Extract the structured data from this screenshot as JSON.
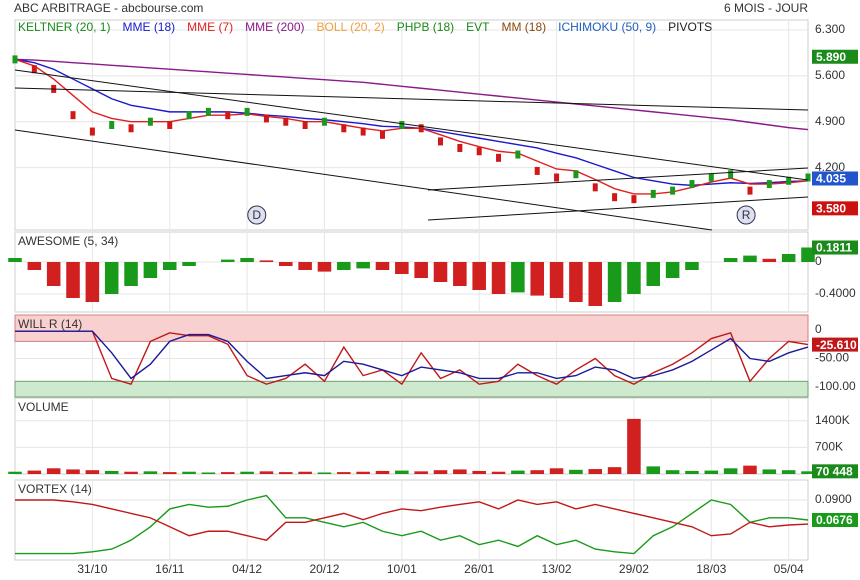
{
  "header": {
    "title": "ABC ARBITRAGE - abcbourse.com",
    "period": "6 MOIS - JOUR"
  },
  "chart_data": [
    {
      "type": "candles",
      "ylim": [
        3.25,
        6.45
      ],
      "yticks": [
        {
          "value": 6.3,
          "label": "6.300"
        },
        {
          "value": 5.6,
          "label": "5.600"
        },
        {
          "value": 4.9,
          "label": "4.900"
        },
        {
          "value": 4.2,
          "label": "4.200"
        }
      ],
      "up_color": "#1a9a1a",
      "down_color": "#d01818",
      "values": [
        5.85,
        5.7,
        5.4,
        5.0,
        4.75,
        4.85,
        4.8,
        4.9,
        4.85,
        5.0,
        5.05,
        5.0,
        5.05,
        4.95,
        4.9,
        4.85,
        4.9,
        4.8,
        4.75,
        4.7,
        4.85,
        4.8,
        4.6,
        4.5,
        4.45,
        4.35,
        4.4,
        4.15,
        4.05,
        4.1,
        3.9,
        3.75,
        3.72,
        3.8,
        3.85,
        3.95,
        4.05,
        4.1,
        3.85,
        3.95,
        4.0,
        4.05
      ],
      "series": [
        {
          "name": "KELTNER (20, 1)",
          "color": "#1a8a1a"
        },
        {
          "name": "MME (18)",
          "color": "#1a1acc",
          "values": [
            5.85,
            5.8,
            5.7,
            5.55,
            5.4,
            5.25,
            5.15,
            5.1,
            5.05,
            5.05,
            5.05,
            5.05,
            5.03,
            5.0,
            4.98,
            4.95,
            4.93,
            4.9,
            4.87,
            4.83,
            4.82,
            4.8,
            4.75,
            4.7,
            4.65,
            4.6,
            4.55,
            4.5,
            4.42,
            4.35,
            4.25,
            4.15,
            4.05,
            4.0,
            3.95,
            3.93,
            3.95,
            3.97,
            3.96,
            3.97,
            3.99,
            4.0
          ]
        },
        {
          "name": "MME (7)",
          "color": "#e02020",
          "values": [
            5.85,
            5.75,
            5.55,
            5.3,
            5.05,
            4.95,
            4.9,
            4.9,
            4.9,
            4.95,
            5.0,
            5.0,
            5.02,
            4.98,
            4.95,
            4.9,
            4.9,
            4.85,
            4.8,
            4.76,
            4.8,
            4.8,
            4.7,
            4.6,
            4.52,
            4.45,
            4.42,
            4.3,
            4.18,
            4.15,
            4.02,
            3.88,
            3.8,
            3.8,
            3.83,
            3.9,
            3.98,
            4.04,
            3.95,
            3.95,
            3.97,
            4.0
          ]
        },
        {
          "name": "MME (200)",
          "color": "#8a1a8a",
          "values": [
            5.85,
            5.84,
            5.82,
            5.8,
            5.78,
            5.76,
            5.74,
            5.72,
            5.7,
            5.68,
            5.66,
            5.64,
            5.62,
            5.6,
            5.58,
            5.56,
            5.54,
            5.52,
            5.5,
            5.47,
            5.44,
            5.41,
            5.38,
            5.35,
            5.32,
            5.29,
            5.26,
            5.23,
            5.2,
            5.17,
            5.14,
            5.11,
            5.08,
            5.05,
            5.02,
            4.99,
            4.96,
            4.93,
            4.89,
            4.85,
            4.81,
            4.78
          ]
        },
        {
          "name": "BOLL (20, 2)",
          "color": "#f0a040"
        },
        {
          "name": "PHPB (18)",
          "color": "#1a8a1a"
        },
        {
          "name": "EVT",
          "color": "#1a8a1a"
        },
        {
          "name": "MM (18)",
          "color": "#8a4a10"
        },
        {
          "name": "ICHIMOKU (50, 9)",
          "color": "#2060c0"
        },
        {
          "name": "PIVOTS",
          "color": "#222222"
        }
      ],
      "badges": [
        {
          "value": 5.89,
          "label": "5.890",
          "color": "#1a8a1a"
        },
        {
          "value": 4.035,
          "label": "4.035",
          "color": "#2255cc"
        },
        {
          "value": 3.58,
          "label": "3.580",
          "color": "#cc1111"
        }
      ],
      "markers": [
        {
          "x": 12.5,
          "label": "D"
        },
        {
          "x": 37.8,
          "label": "R"
        }
      ]
    },
    {
      "type": "bar",
      "title": "AWESOME (5, 34)",
      "ylim": [
        -0.625,
        0.375
      ],
      "yticks": [
        0,
        {
          "value": -0.4,
          "label": "-0.4000"
        }
      ],
      "up_color": "#1a9a1a",
      "down_color": "#d02020",
      "badge_color": "#1a8a1a",
      "values": [
        0.05,
        -0.1,
        -0.3,
        -0.45,
        -0.5,
        -0.4,
        -0.3,
        -0.2,
        -0.1,
        -0.05,
        0,
        0.03,
        0.05,
        0.02,
        -0.05,
        -0.1,
        -0.12,
        -0.1,
        -0.08,
        -0.1,
        -0.15,
        -0.2,
        -0.25,
        -0.3,
        -0.35,
        -0.4,
        -0.38,
        -0.42,
        -0.45,
        -0.5,
        -0.55,
        -0.5,
        -0.4,
        -0.3,
        -0.2,
        -0.1,
        0,
        0.05,
        0.08,
        0.04,
        0.1,
        0.1811
      ]
    },
    {
      "type": "line",
      "title": "WILL R (14)",
      "ylim": [
        -117.5,
        26.3
      ],
      "yticks": [
        0,
        {
          "value": -50,
          "label": "-50.00"
        },
        {
          "value": -100,
          "label": "-100.00"
        }
      ],
      "overbought": -20,
      "oversold": -90,
      "series": [
        {
          "color": "#c01818",
          "values": [
            -2,
            -2,
            -2,
            -2,
            -2,
            -85,
            -95,
            -20,
            -5,
            -10,
            -10,
            -25,
            -80,
            -95,
            -85,
            -60,
            -90,
            -30,
            -80,
            -70,
            -95,
            -40,
            -85,
            -70,
            -95,
            -90,
            -60,
            -80,
            -95,
            -70,
            -50,
            -80,
            -95,
            -75,
            -60,
            -40,
            -15,
            -5,
            -90,
            -50,
            -20,
            -25.61
          ],
          "value_labels": [
            null,
            null,
            null,
            null,
            null,
            null,
            null,
            null,
            null,
            null,
            null,
            null,
            null,
            null,
            null,
            null,
            null,
            null,
            null,
            null,
            null,
            null,
            null,
            null,
            null,
            null,
            null,
            null,
            null,
            null,
            null,
            null,
            null,
            null,
            null,
            null,
            null,
            null,
            null,
            null,
            null,
            "-25.610"
          ]
        },
        {
          "color": "#1a1a9a",
          "values": [
            -2,
            -2,
            -2,
            -2,
            -2,
            -40,
            -85,
            -60,
            -20,
            -8,
            -8,
            -20,
            -55,
            -85,
            -80,
            -75,
            -80,
            -55,
            -60,
            -70,
            -80,
            -65,
            -70,
            -75,
            -85,
            -85,
            -75,
            -75,
            -85,
            -80,
            -65,
            -70,
            -85,
            -80,
            -70,
            -55,
            -35,
            -15,
            -50,
            -55,
            -40,
            -30
          ]
        }
      ]
    },
    {
      "type": "bar",
      "title": "VOLUME",
      "ylim": [
        0,
        2000000
      ],
      "yticks": [
        {
          "value": 1400000,
          "label": "1400K"
        },
        {
          "value": 700000,
          "label": "700K"
        }
      ],
      "up_color": "#1a9a1a",
      "down_color": "#d02020",
      "badge_color": "#1a8a1a",
      "values": [
        60000,
        90000,
        150000,
        120000,
        100000,
        80000,
        60000,
        70000,
        50000,
        60000,
        40000,
        50000,
        60000,
        70000,
        50000,
        60000,
        40000,
        50000,
        60000,
        80000,
        90000,
        70000,
        100000,
        120000,
        80000,
        60000,
        90000,
        100000,
        150000,
        110000,
        130000,
        180000,
        1450000,
        200000,
        100000,
        80000,
        90000,
        150000,
        220000,
        120000,
        100000,
        70448
      ],
      "value_labels": [
        null,
        null,
        null,
        null,
        null,
        null,
        null,
        null,
        null,
        null,
        null,
        null,
        null,
        null,
        null,
        null,
        null,
        null,
        null,
        null,
        null,
        null,
        null,
        null,
        null,
        null,
        null,
        null,
        null,
        null,
        null,
        null,
        null,
        null,
        null,
        null,
        null,
        null,
        null,
        null,
        null,
        "70 448"
      ]
    },
    {
      "type": "line",
      "title": "VORTEX (14)",
      "ylim": [
        0.0228,
        0.1124
      ],
      "yticks": [
        {
          "value": 0.09,
          "label": "0.0900"
        }
      ],
      "xlim": [
        0,
        41
      ],
      "x": [
        0,
        1,
        2,
        3,
        4,
        5,
        6,
        7,
        8,
        9,
        10,
        11,
        12,
        13,
        14,
        15,
        16,
        17,
        18,
        19,
        20,
        21,
        22,
        23,
        24,
        25,
        26,
        27,
        28,
        29,
        30,
        31,
        32,
        33,
        34,
        35,
        36,
        37,
        38,
        39,
        40,
        41
      ],
      "xticks": [
        {
          "value": 4,
          "label": "31/10"
        },
        {
          "value": 8,
          "label": "16/11"
        },
        {
          "value": 12,
          "label": "04/12"
        },
        {
          "value": 16,
          "label": "20/12"
        },
        {
          "value": 20,
          "label": "10/01"
        },
        {
          "value": 24,
          "label": "26/01"
        },
        {
          "value": 28,
          "label": "13/02"
        },
        {
          "value": 32,
          "label": "29/02"
        },
        {
          "value": 36,
          "label": "18/03"
        },
        {
          "value": 40,
          "label": "05/04"
        }
      ],
      "series": [
        {
          "color": "#1a9a1a",
          "values": [
            0.03,
            0.03,
            0.03,
            0.03,
            0.032,
            0.035,
            0.045,
            0.06,
            0.08,
            0.085,
            0.082,
            0.083,
            0.09,
            0.095,
            0.07,
            0.07,
            0.065,
            0.06,
            0.065,
            0.055,
            0.05,
            0.055,
            0.045,
            0.05,
            0.04,
            0.045,
            0.038,
            0.05,
            0.04,
            0.045,
            0.035,
            0.032,
            0.03,
            0.05,
            0.06,
            0.075,
            0.09,
            0.085,
            0.065,
            0.07,
            0.07,
            0.0676
          ]
        },
        {
          "color": "#c01818",
          "values": [
            0.09,
            0.09,
            0.09,
            0.088,
            0.085,
            0.08,
            0.075,
            0.07,
            0.06,
            0.05,
            0.055,
            0.055,
            0.05,
            0.045,
            0.065,
            0.065,
            0.07,
            0.075,
            0.068,
            0.075,
            0.08,
            0.078,
            0.082,
            0.085,
            0.088,
            0.08,
            0.09,
            0.085,
            0.088,
            0.08,
            0.085,
            0.08,
            0.075,
            0.07,
            0.065,
            0.06,
            0.05,
            0.052,
            0.065,
            0.06,
            0.062,
            0.063
          ]
        }
      ]
    }
  ]
}
